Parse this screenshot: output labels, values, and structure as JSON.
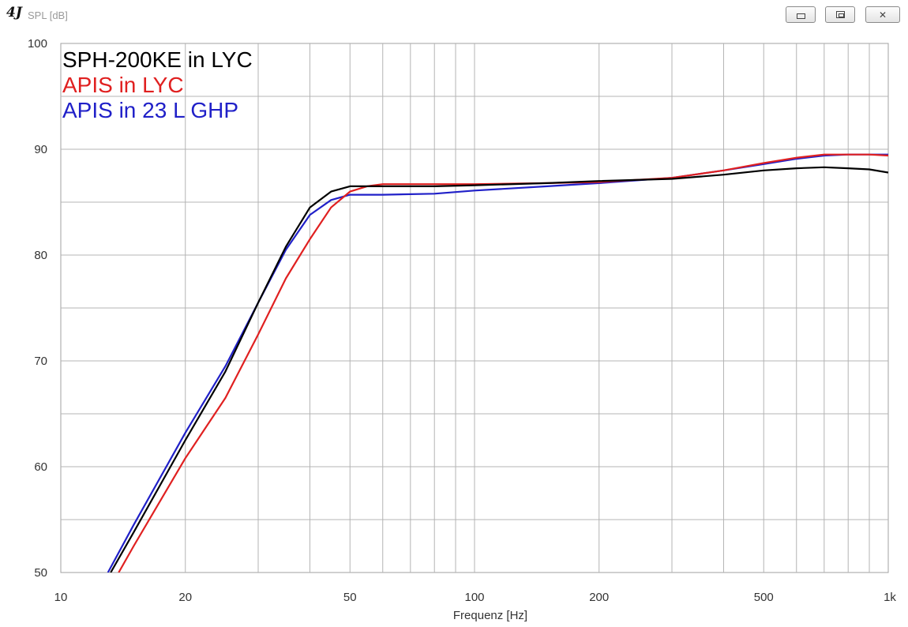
{
  "window": {
    "logo": "4J",
    "title": "SPL [dB]",
    "buttons": {
      "minimize": "minimize-icon",
      "maximize": "restore-icon",
      "close": "close-icon"
    }
  },
  "chart_data": {
    "type": "line",
    "title": "",
    "xlabel": "Frequenz [Hz]",
    "ylabel": "SPL [dB]",
    "xscale": "log",
    "xlim": [
      10,
      1000
    ],
    "ylim": [
      50,
      100
    ],
    "grid": true,
    "legend_placement": "top-left",
    "x_tick_labels": [
      {
        "v": 10,
        "t": "10"
      },
      {
        "v": 20,
        "t": "20"
      },
      {
        "v": 50,
        "t": "50"
      },
      {
        "v": 100,
        "t": "100"
      },
      {
        "v": 200,
        "t": "200"
      },
      {
        "v": 500,
        "t": "500"
      },
      {
        "v": 1000,
        "t": "1k"
      }
    ],
    "y_tick_labels": [
      {
        "v": 50,
        "t": "50"
      },
      {
        "v": 60,
        "t": "60"
      },
      {
        "v": 70,
        "t": "70"
      },
      {
        "v": 80,
        "t": "80"
      },
      {
        "v": 90,
        "t": "90"
      },
      {
        "v": 100,
        "t": "100"
      }
    ],
    "series": [
      {
        "name": "SPH-200KE in LYC",
        "color": "#000000",
        "points": [
          [
            13.2,
            50
          ],
          [
            15,
            53.8
          ],
          [
            20,
            62.5
          ],
          [
            25,
            69
          ],
          [
            30,
            75.5
          ],
          [
            35,
            80.8
          ],
          [
            40,
            84.5
          ],
          [
            45,
            86.0
          ],
          [
            50,
            86.5
          ],
          [
            60,
            86.5
          ],
          [
            80,
            86.5
          ],
          [
            100,
            86.6
          ],
          [
            150,
            86.8
          ],
          [
            200,
            87.0
          ],
          [
            300,
            87.2
          ],
          [
            400,
            87.6
          ],
          [
            500,
            88.0
          ],
          [
            600,
            88.2
          ],
          [
            700,
            88.3
          ],
          [
            800,
            88.2
          ],
          [
            900,
            88.1
          ],
          [
            1000,
            87.8
          ]
        ]
      },
      {
        "name": "APIS in LYC",
        "color": "#e02020",
        "points": [
          [
            13.8,
            50
          ],
          [
            15,
            52.5
          ],
          [
            20,
            60.8
          ],
          [
            25,
            66.5
          ],
          [
            30,
            72.5
          ],
          [
            35,
            77.8
          ],
          [
            40,
            81.5
          ],
          [
            45,
            84.5
          ],
          [
            50,
            86.0
          ],
          [
            55,
            86.5
          ],
          [
            60,
            86.7
          ],
          [
            80,
            86.7
          ],
          [
            100,
            86.7
          ],
          [
            150,
            86.8
          ],
          [
            200,
            86.9
          ],
          [
            300,
            87.3
          ],
          [
            400,
            88.0
          ],
          [
            500,
            88.7
          ],
          [
            600,
            89.2
          ],
          [
            700,
            89.5
          ],
          [
            800,
            89.5
          ],
          [
            900,
            89.5
          ],
          [
            1000,
            89.4
          ]
        ]
      },
      {
        "name": "APIS in 23 L GHP",
        "color": "#2020c8",
        "points": [
          [
            13.0,
            50
          ],
          [
            15,
            54.5
          ],
          [
            20,
            63.2
          ],
          [
            25,
            69.5
          ],
          [
            30,
            75.5
          ],
          [
            35,
            80.5
          ],
          [
            40,
            83.8
          ],
          [
            45,
            85.2
          ],
          [
            50,
            85.7
          ],
          [
            60,
            85.7
          ],
          [
            80,
            85.8
          ],
          [
            100,
            86.1
          ],
          [
            150,
            86.5
          ],
          [
            200,
            86.8
          ],
          [
            300,
            87.3
          ],
          [
            400,
            88.0
          ],
          [
            500,
            88.6
          ],
          [
            600,
            89.1
          ],
          [
            700,
            89.4
          ],
          [
            800,
            89.5
          ],
          [
            900,
            89.5
          ],
          [
            1000,
            89.5
          ]
        ]
      }
    ]
  }
}
